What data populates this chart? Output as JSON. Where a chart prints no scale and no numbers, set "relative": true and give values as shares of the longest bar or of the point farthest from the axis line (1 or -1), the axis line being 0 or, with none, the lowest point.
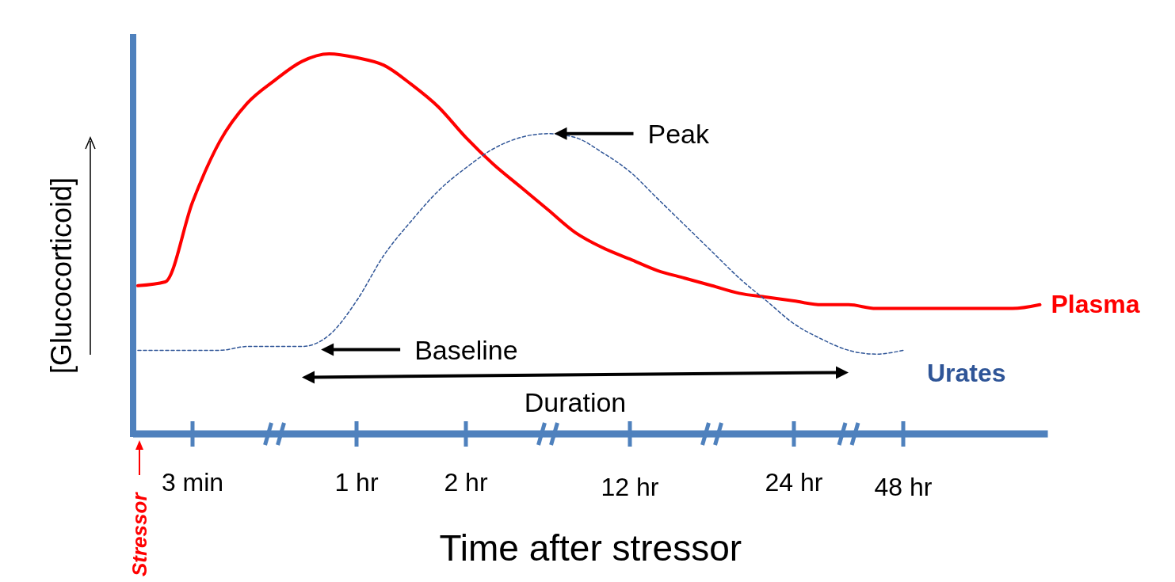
{
  "chart_data": {
    "type": "line",
    "relative": true,
    "xlabel": "Time after stressor",
    "ylabel": "[Glucocorticoid]",
    "categories": [
      null,
      null,
      "3 min",
      null,
      null,
      null,
      null,
      null,
      "1 hr",
      null,
      null,
      null,
      "2 hr",
      null,
      null,
      null,
      null,
      null,
      "12 hr",
      null,
      null,
      null,
      null,
      null,
      "24 hr",
      null,
      null,
      null,
      "48 hr",
      null,
      null,
      null,
      null,
      null
    ],
    "legend": false,
    "series": [
      {
        "name": "Plasma",
        "color": "#ff0000",
        "line_style": "solid",
        "values": [
          0.39,
          0.4,
          0.61,
          0.77,
          0.87,
          0.93,
          0.98,
          1,
          0.99,
          0.97,
          0.92,
          0.86,
          0.78,
          0.71,
          0.65,
          0.59,
          0.53,
          0.49,
          0.46,
          0.43,
          0.41,
          0.39,
          0.37,
          0.36,
          0.35,
          0.34,
          0.34,
          0.33,
          0.33,
          0.33,
          0.33,
          0.33,
          0.33,
          0.34
        ]
      },
      {
        "name": "Urates",
        "color": "#2f5597",
        "line_style": "dashed",
        "values": [
          0.22,
          0.22,
          0.22,
          0.22,
          0.23,
          0.23,
          0.23,
          0.26,
          0.35,
          0.47,
          0.56,
          0.64,
          0.7,
          0.75,
          0.78,
          0.79,
          0.78,
          0.74,
          0.69,
          0.62,
          0.55,
          0.48,
          0.41,
          0.35,
          0.29,
          0.25,
          0.22,
          0.21,
          0.22,
          null,
          null,
          null,
          null,
          null
        ]
      }
    ],
    "annotations": [
      "Peak",
      "Baseline",
      "Duration",
      "Stressor"
    ]
  }
}
